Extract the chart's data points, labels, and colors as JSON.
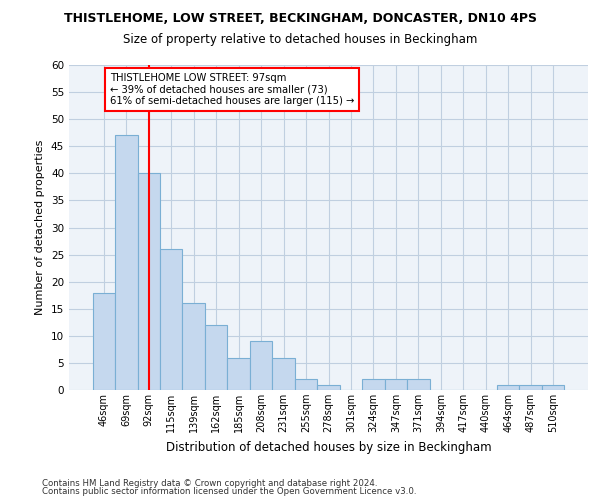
{
  "title1": "THISTLEHOME, LOW STREET, BECKINGHAM, DONCASTER, DN10 4PS",
  "title2": "Size of property relative to detached houses in Beckingham",
  "xlabel": "Distribution of detached houses by size in Beckingham",
  "ylabel": "Number of detached properties",
  "categories": [
    "46sqm",
    "69sqm",
    "92sqm",
    "115sqm",
    "139sqm",
    "162sqm",
    "185sqm",
    "208sqm",
    "231sqm",
    "255sqm",
    "278sqm",
    "301sqm",
    "324sqm",
    "347sqm",
    "371sqm",
    "394sqm",
    "417sqm",
    "440sqm",
    "464sqm",
    "487sqm",
    "510sqm"
  ],
  "values": [
    18,
    47,
    40,
    26,
    16,
    12,
    6,
    9,
    6,
    2,
    1,
    0,
    2,
    2,
    2,
    0,
    0,
    0,
    1,
    1,
    1
  ],
  "bar_color": "#c5d8ee",
  "bar_edge_color": "#7aafd4",
  "red_line_x": 2.0,
  "annotation_line1": "THISTLEHOME LOW STREET: 97sqm",
  "annotation_line2": "← 39% of detached houses are smaller (73)",
  "annotation_line3": "61% of semi-detached houses are larger (115) →",
  "ylim": [
    0,
    60
  ],
  "yticks": [
    0,
    5,
    10,
    15,
    20,
    25,
    30,
    35,
    40,
    45,
    50,
    55,
    60
  ],
  "footer1": "Contains HM Land Registry data © Crown copyright and database right 2024.",
  "footer2": "Contains public sector information licensed under the Open Government Licence v3.0.",
  "bg_color": "#ffffff",
  "plot_bg_color": "#eef3f9",
  "grid_color": "#c0cfe0"
}
